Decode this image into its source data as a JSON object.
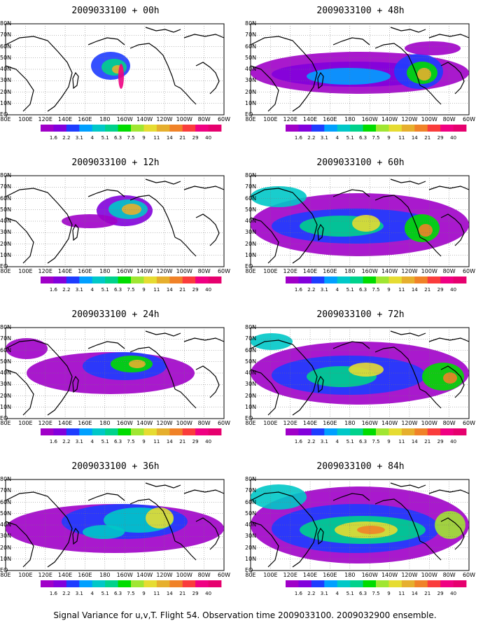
{
  "caption": "Signal Variance for u,v,T. Flight 54. Observation time 2009033100. 2009032900 ensemble.",
  "panels": [
    {
      "title": "2009033100 + 00h"
    },
    {
      "title": "2009033100 + 48h"
    },
    {
      "title": "2009033100 + 12h"
    },
    {
      "title": "2009033100 + 60h"
    },
    {
      "title": "2009033100 + 24h"
    },
    {
      "title": "2009033100 + 72h"
    },
    {
      "title": "2009033100 + 36h"
    },
    {
      "title": "2009033100 + 84h"
    }
  ],
  "lat_labels": [
    "80N",
    "70N",
    "60N",
    "50N",
    "40N",
    "30N",
    "20N",
    "10N",
    "EQ"
  ],
  "lon_labels": [
    "80E",
    "100E",
    "120E",
    "140E",
    "160E",
    "180",
    "160W",
    "140W",
    "120W",
    "100W",
    "80W",
    "60W"
  ],
  "colorbar": {
    "labels": [
      "1.6",
      "2.2",
      "3.1",
      "4",
      "5.1",
      "6.3",
      "7.5",
      "9",
      "11",
      "14",
      "21",
      "29",
      "40"
    ],
    "colors": [
      "#a000c8",
      "#8200dc",
      "#1e3cff",
      "#00a0ff",
      "#00c8c8",
      "#00d28c",
      "#00dc00",
      "#a0e632",
      "#e6dc32",
      "#e6af2d",
      "#f08228",
      "#fa3c3c",
      "#f00082",
      "#e6006e"
    ]
  }
}
